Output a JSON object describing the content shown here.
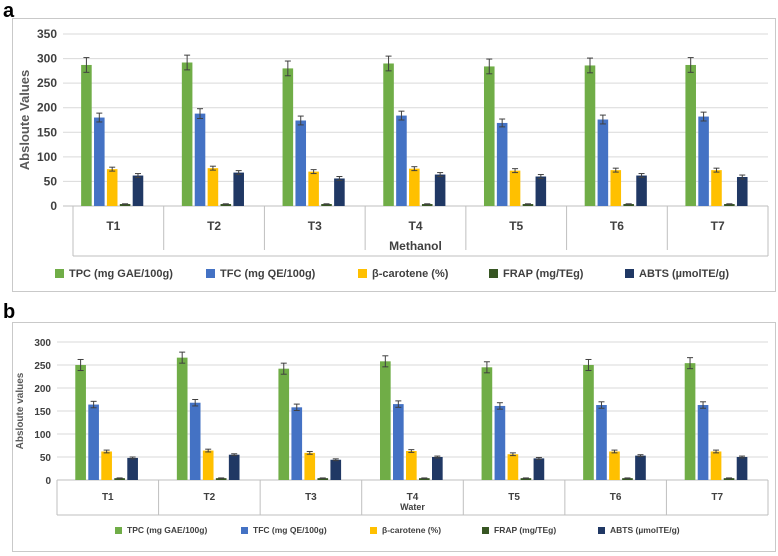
{
  "figure": {
    "panels": [
      {
        "label": "a"
      },
      {
        "label": "b"
      }
    ]
  },
  "chart_data": [
    {
      "type": "bar",
      "panel": "a",
      "title": "",
      "xlabel": "Methanol",
      "ylabel": "Absloute Values",
      "ylim": [
        0,
        350
      ],
      "yticks": [
        0,
        50,
        100,
        150,
        200,
        250,
        300,
        350
      ],
      "grid": true,
      "legend_position": "bottom",
      "categories": [
        "T1",
        "T2",
        "T3",
        "T4",
        "T5",
        "T6",
        "T7"
      ],
      "series": [
        {
          "name": "TPC (mg GAE/100g)",
          "color": "#70ad47",
          "values": [
            287,
            292,
            280,
            290,
            284,
            286,
            287
          ],
          "errors": [
            15,
            15,
            15,
            15,
            15,
            15,
            15
          ]
        },
        {
          "name": "TFC  (mg QE/100g)",
          "color": "#4472c4",
          "values": [
            180,
            188,
            174,
            184,
            169,
            176,
            182
          ],
          "errors": [
            9,
            10,
            9,
            9,
            8,
            9,
            9
          ]
        },
        {
          "name": "β-carotene (%)",
          "color": "#ffc000",
          "values": [
            75,
            77,
            70,
            76,
            72,
            73,
            73
          ],
          "errors": [
            4,
            4,
            4,
            4,
            4,
            4,
            4
          ]
        },
        {
          "name": "FRAP (mg/TEg)",
          "color": "#375623",
          "values": [
            4,
            4,
            4,
            4,
            4,
            4,
            4
          ],
          "errors": [
            0.5,
            0.5,
            0.5,
            0.5,
            0.5,
            0.5,
            0.5
          ]
        },
        {
          "name": "ABTS (µmolTE/g)",
          "color": "#203864",
          "values": [
            62,
            68,
            56,
            64,
            60,
            62,
            59
          ],
          "errors": [
            4,
            4,
            4,
            4,
            4,
            4,
            4
          ]
        }
      ]
    },
    {
      "type": "bar",
      "panel": "b",
      "title": "",
      "xlabel": "Water",
      "ylabel": "Absloute values",
      "ylim": [
        0,
        300
      ],
      "yticks": [
        0,
        50,
        100,
        150,
        200,
        250,
        300
      ],
      "grid": true,
      "legend_position": "bottom",
      "categories": [
        "T1",
        "T2",
        "T3",
        "T4",
        "T5",
        "T6",
        "T7"
      ],
      "series": [
        {
          "name": "TPC (mg GAE/100g)",
          "color": "#70ad47",
          "values": [
            250,
            266,
            242,
            258,
            245,
            250,
            254
          ],
          "errors": [
            12,
            12,
            12,
            12,
            12,
            12,
            12
          ]
        },
        {
          "name": "TFC  (mg QE/100g)",
          "color": "#4472c4",
          "values": [
            164,
            168,
            158,
            165,
            161,
            163,
            163
          ],
          "errors": [
            7,
            7,
            7,
            7,
            7,
            7,
            7
          ]
        },
        {
          "name": "β-carotene (%)",
          "color": "#ffc000",
          "values": [
            62,
            64,
            59,
            63,
            56,
            62,
            62
          ],
          "errors": [
            3,
            3,
            3,
            3,
            3,
            3,
            3
          ]
        },
        {
          "name": "FRAP (mg/TEg)",
          "color": "#375623",
          "values": [
            4,
            4,
            4,
            4,
            4,
            4,
            4
          ],
          "errors": [
            0.5,
            0.5,
            0.5,
            0.5,
            0.5,
            0.5,
            0.5
          ]
        },
        {
          "name": "ABTS (µmolTE/g)",
          "color": "#203864",
          "values": [
            48,
            55,
            44,
            50,
            47,
            53,
            50
          ],
          "errors": [
            2,
            2,
            2,
            2,
            2,
            2,
            2
          ]
        }
      ]
    }
  ]
}
